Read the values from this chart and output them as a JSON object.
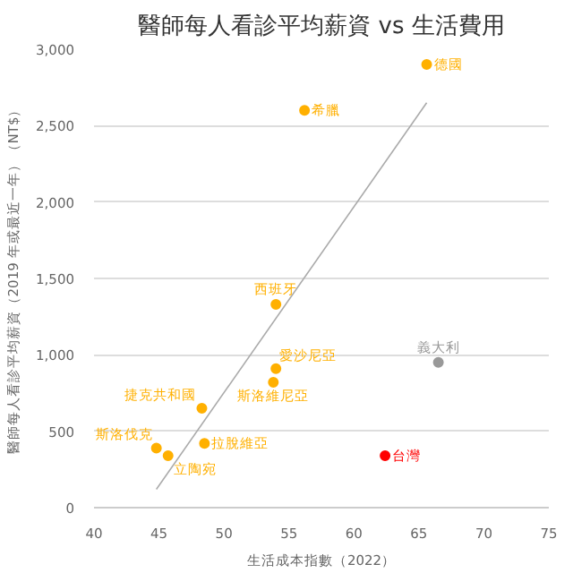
{
  "chart_data": {
    "type": "scatter",
    "title": "醫師每人看診平均薪資 vs 生活費用",
    "xlabel": "生活成本指數（2022）",
    "ylabel": "醫師每人看診平均薪資（2019 年或最近一年）（NT$）",
    "series": [
      {
        "name": "德國",
        "color": "#ffb000",
        "x": [
          65.6
        ],
        "values": [
          2900
        ]
      },
      {
        "name": "希臘",
        "color": "#ffb000",
        "x": [
          56.2
        ],
        "values": [
          2600
        ]
      },
      {
        "name": "西班牙",
        "color": "#ffb000",
        "x": [
          54.0
        ],
        "values": [
          1330
        ]
      },
      {
        "name": "愛沙尼亞",
        "color": "#ffb000",
        "x": [
          54.0
        ],
        "values": [
          910
        ]
      },
      {
        "name": "斯洛維尼亞",
        "color": "#ffb000",
        "x": [
          53.8
        ],
        "values": [
          820
        ]
      },
      {
        "name": "義大利",
        "color": "#999999",
        "x": [
          66.5
        ],
        "values": [
          950
        ]
      },
      {
        "name": "捷克共和國",
        "color": "#ffb000",
        "x": [
          48.3
        ],
        "values": [
          650
        ]
      },
      {
        "name": "斯洛伐克",
        "color": "#ffb000",
        "x": [
          44.8
        ],
        "values": [
          390
        ]
      },
      {
        "name": "拉脫維亞",
        "color": "#ffb000",
        "x": [
          48.5
        ],
        "values": [
          420
        ]
      },
      {
        "name": "立陶宛",
        "color": "#ffb000",
        "x": [
          45.7
        ],
        "values": [
          340
        ]
      },
      {
        "name": "台灣",
        "color": "#ff0000",
        "x": [
          62.4
        ],
        "values": [
          340
        ]
      },
      {
        "type": "line",
        "marker": "none",
        "color": "#aaaaaa",
        "x": [
          44.8,
          65.6
        ],
        "values": [
          120,
          2650
        ]
      }
    ],
    "xlim": [
      40,
      75
    ],
    "xticks": [
      40,
      45,
      50,
      55,
      60,
      65,
      70,
      75
    ],
    "ylim": [
      0,
      3000
    ],
    "yticks": [
      {
        "value": 0,
        "label": "0"
      },
      {
        "value": 500,
        "label": "500"
      },
      {
        "value": 1000,
        "label": "1,000"
      },
      {
        "value": 1500,
        "label": "1,500"
      },
      {
        "value": 2000,
        "label": "2,000"
      },
      {
        "value": 2500,
        "label": "2,500"
      },
      {
        "value": 3000,
        "label": "3,000"
      }
    ],
    "grid": "y",
    "marker": "circle"
  }
}
